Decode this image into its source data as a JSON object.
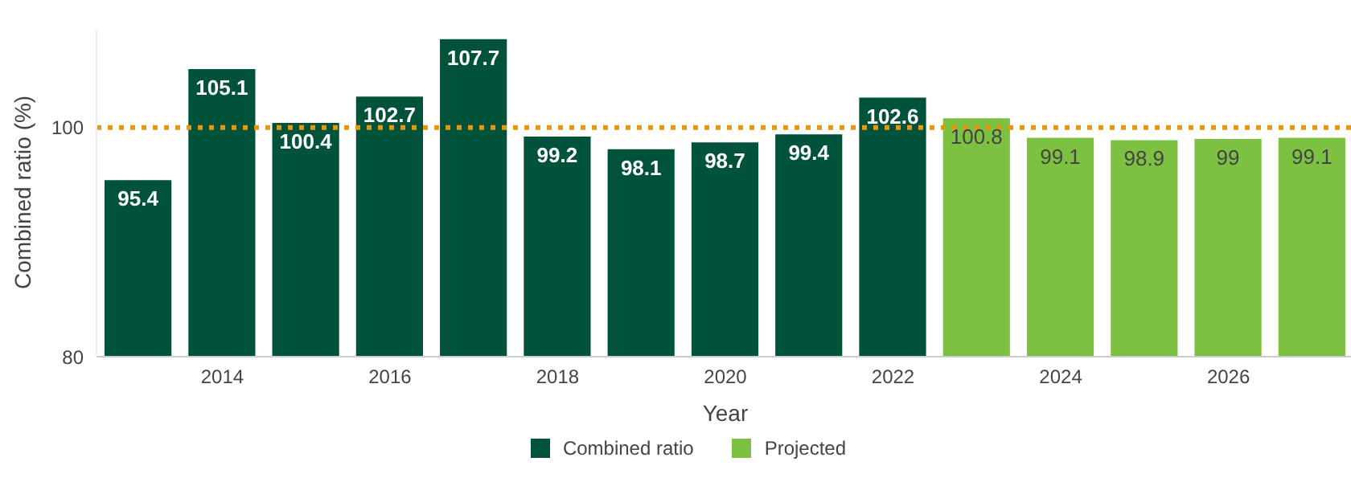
{
  "chart_data": {
    "type": "bar",
    "xlabel": "Year",
    "ylabel": "Combined ratio (%)",
    "series": [
      {
        "name": "Combined ratio",
        "color": "#00533a",
        "x": [
          2013,
          2014,
          2015,
          2016,
          2017,
          2018,
          2019,
          2020,
          2021,
          2022
        ],
        "values": [
          95.4,
          105.1,
          100.4,
          102.7,
          107.7,
          99.2,
          98.1,
          98.7,
          99.4,
          102.6
        ]
      },
      {
        "name": "Projected",
        "color": "#7dc142",
        "x": [
          2023,
          2024,
          2025,
          2026,
          2027
        ],
        "values": [
          100.8,
          99.1,
          98.9,
          99,
          99.1
        ]
      }
    ],
    "xlim": [
      2012.5,
      2027.5
    ],
    "xticks": [
      2014,
      2016,
      2018,
      2020,
      2022,
      2024,
      2026
    ],
    "ylim": [
      80,
      108.6
    ],
    "yticks": [
      80,
      100
    ],
    "ref_lines": [
      {
        "axis": "y",
        "value": 100,
        "color": "#e8960c",
        "line_style": "dotted"
      }
    ],
    "data_labels": true,
    "legend": "bottom"
  }
}
